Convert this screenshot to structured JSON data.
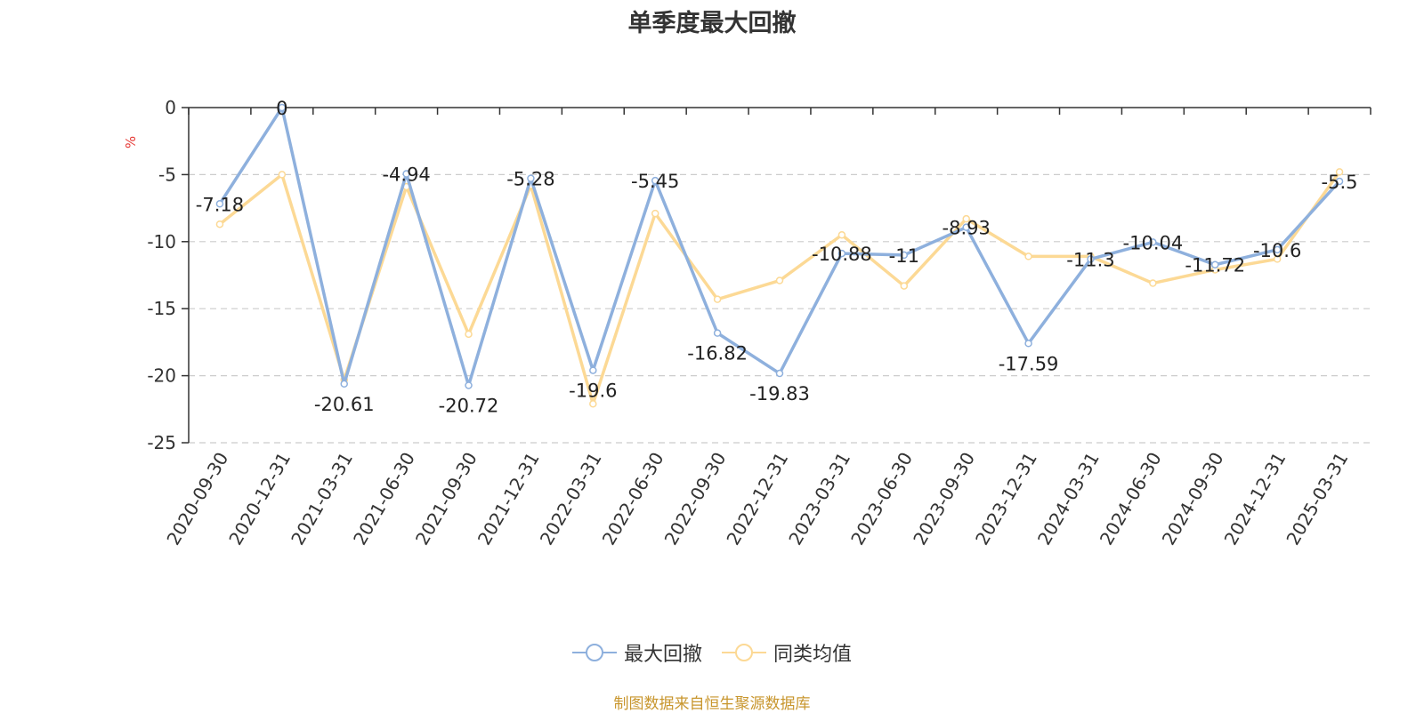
{
  "chart_data": {
    "type": "line",
    "title": "单季度最大回撤",
    "ylabel": "%",
    "xlabel": "",
    "ylim": [
      -25,
      0
    ],
    "yticks": [
      0,
      -5,
      -10,
      -15,
      -20,
      -25
    ],
    "grid": true,
    "legend_position": "bottom",
    "categories": [
      "2020-09-30",
      "2020-12-31",
      "2021-03-31",
      "2021-06-30",
      "2021-09-30",
      "2021-12-31",
      "2022-03-31",
      "2022-06-30",
      "2022-09-30",
      "2022-12-31",
      "2023-03-31",
      "2023-06-30",
      "2023-09-30",
      "2023-12-31",
      "2024-03-31",
      "2024-06-30",
      "2024-09-30",
      "2024-12-31",
      "2025-03-31"
    ],
    "series": [
      {
        "name": "最大回撤",
        "color": "#8eb0dd",
        "values": [
          -7.18,
          0,
          -20.61,
          -4.94,
          -20.72,
          -5.28,
          -19.6,
          -5.45,
          -16.82,
          -19.83,
          -10.88,
          -11,
          -8.93,
          -17.59,
          -11.3,
          -10.04,
          -11.72,
          -10.6,
          -5.5
        ],
        "labels": [
          "-7.18",
          "0",
          "-20.61",
          "-4.94",
          "-20.72",
          "-5.28",
          "-19.6",
          "-5.45",
          "-16.82",
          "-19.83",
          "-10.88",
          "-11",
          "-8.93",
          "-17.59",
          "-11.3",
          "-10.04",
          "-11.72",
          "-10.6",
          "-5.5"
        ]
      },
      {
        "name": "同类均值",
        "color": "#fcd995",
        "values": [
          -8.7,
          -5.0,
          -20.3,
          -5.9,
          -16.9,
          -5.8,
          -22.1,
          -7.9,
          -14.3,
          -12.9,
          -9.5,
          -13.3,
          -8.3,
          -11.1,
          -11.1,
          -13.1,
          -12.1,
          -11.3,
          -4.8
        ]
      }
    ],
    "source": "制图数据来自恒生聚源数据库"
  }
}
